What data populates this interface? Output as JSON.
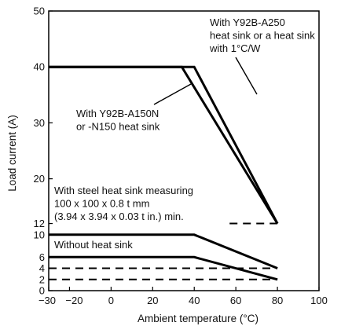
{
  "chart_data": {
    "type": "line",
    "xlabel": "Ambient temperature (°C)",
    "ylabel": "Load current (A)",
    "xlim": [
      -30,
      100
    ],
    "ylim": [
      0,
      50
    ],
    "xticks": [
      -30,
      -20,
      0,
      20,
      40,
      60,
      80,
      100
    ],
    "yticks": [
      0,
      2,
      4,
      6,
      10,
      12,
      20,
      30,
      40,
      50
    ],
    "grid": false,
    "series": [
      {
        "name": "With Y92B-A250 heat sink or a heat sink with 1°C/W",
        "style": "solid",
        "points": [
          [
            -30,
            40
          ],
          [
            40,
            40
          ],
          [
            80,
            12
          ]
        ]
      },
      {
        "name": "With Y92B-A150N or -N150 heat sink",
        "style": "solid",
        "points": [
          [
            -30,
            40
          ],
          [
            34,
            40
          ],
          [
            80,
            12
          ]
        ]
      },
      {
        "name": "With steel heat sink measuring 100 x 100 x 0.8 t mm (3.94 x 3.94 x 0.03 t in.) min.",
        "style": "solid",
        "points": [
          [
            -30,
            10
          ],
          [
            40,
            10
          ],
          [
            80,
            4
          ]
        ]
      },
      {
        "name": "Without heat sink",
        "style": "solid",
        "points": [
          [
            -30,
            6
          ],
          [
            40,
            6
          ],
          [
            80,
            2
          ]
        ]
      }
    ],
    "reference_lines": [
      {
        "y": 12,
        "x_from": 57,
        "x_to": 80,
        "style": "dashed"
      },
      {
        "y": 4,
        "x_from": -30,
        "x_to": 80,
        "style": "dashed"
      },
      {
        "y": 2,
        "x_from": -30,
        "x_to": 80,
        "style": "dashed"
      }
    ],
    "annotations": [
      {
        "id": "a250",
        "lines": [
          "With Y92B-A250",
          "heat sink or a heat sink",
          "with 1°C/W"
        ]
      },
      {
        "id": "a150",
        "lines": [
          "With Y92B-A150N",
          "or -N150 heat sink"
        ]
      },
      {
        "id": "steel",
        "lines": [
          "With steel heat sink measuring",
          "100 x 100 x 0.8 t mm",
          "(3.94 x 3.94 x 0.03 t in.) min."
        ]
      },
      {
        "id": "none",
        "lines": [
          "Without heat sink"
        ]
      }
    ]
  }
}
